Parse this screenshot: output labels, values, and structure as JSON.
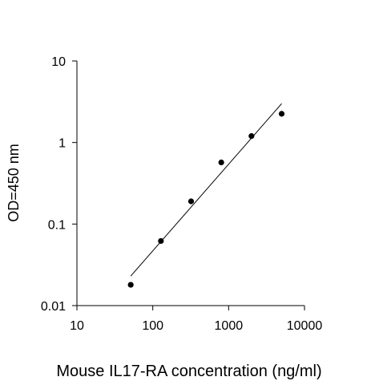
{
  "chart_data": {
    "type": "scatter",
    "title": "",
    "xlabel": "Mouse IL17-RA concentration (ng/ml)",
    "ylabel": "OD=450 nm",
    "x_scale": "log",
    "y_scale": "log",
    "xlim": [
      10,
      10000
    ],
    "ylim": [
      0.01,
      10
    ],
    "x_ticks": [
      10,
      100,
      1000,
      10000
    ],
    "x_tick_labels": [
      "10",
      "100",
      "1000",
      "10000"
    ],
    "y_ticks": [
      0.01,
      0.1,
      1,
      10
    ],
    "y_tick_labels": [
      "0.01",
      "0.1",
      "1",
      "10"
    ],
    "grid": false,
    "legend": "none",
    "series": [
      {
        "x": [
          51.2,
          128,
          320,
          800,
          2000,
          5000
        ],
        "y": [
          0.018,
          0.062,
          0.19,
          0.57,
          1.2,
          2.25
        ]
      }
    ],
    "fit_line": {
      "x": [
        51.2,
        5000
      ],
      "y": [
        0.023,
        3.0
      ]
    },
    "colors": {
      "marker": "#000000",
      "line": "#000000",
      "axis": "#000000"
    }
  }
}
